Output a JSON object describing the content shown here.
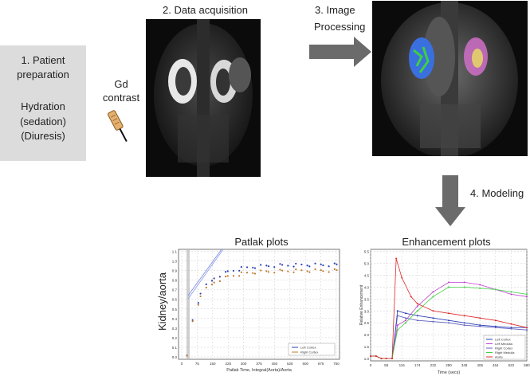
{
  "steps": {
    "prep_number": "1. Patient",
    "prep_title2": "preparation",
    "prep_hydration": "Hydration",
    "prep_sedation": "(sedation)",
    "prep_diuresis": "(Diuresis)",
    "contrast_line1": "Gd",
    "contrast_line2": "contrast",
    "acquisition": "2. Data acquisition",
    "processing_line1": "3. Image",
    "processing_line2": "Processing",
    "modeling": "4. Modeling"
  },
  "patlak": {
    "title": "Patlak plots",
    "ylabel": "Kidney/aorta",
    "xlabel": "Patlak Time, Integral(Aorta)/Aorta",
    "yticks": [
      "0.0",
      "0.1",
      "0.2",
      "0.3",
      "0.4",
      "0.5",
      "0.6",
      "0.7",
      "0.8",
      "0.9",
      "1.0",
      "1.1"
    ],
    "xticks": [
      "0",
      "75",
      "150",
      "225",
      "300",
      "375",
      "450",
      "525",
      "600",
      "675",
      "750"
    ],
    "legend": [
      "Left Cortex",
      "Right Cortex"
    ]
  },
  "enhancement": {
    "title": "Enhancement plots",
    "ylabel": "Relative Enhancement",
    "xlabel": "Time (secs)",
    "yticks": [
      "1.0",
      "1.5",
      "2.0",
      "2.5",
      "3.0",
      "3.5",
      "4.0",
      "4.5",
      "5.0",
      "5.5"
    ],
    "xticks": [
      "0",
      "58",
      "116",
      "174",
      "232",
      "290",
      "348",
      "406",
      "464",
      "522",
      "580"
    ],
    "legend": [
      "Left Cortex",
      "Left Medulla",
      "Right Cortex",
      "Right Medulla",
      "Aorta"
    ]
  },
  "colors": {
    "arrow": "#6b6b6b",
    "series_blue": "#2b3fb5",
    "series_orange": "#c07a30",
    "series_red": "#e02828",
    "series_magenta": "#c23fd0",
    "series_green": "#3fcf3f",
    "kidney_left": "#3a6fe0",
    "kidney_right": "#d070c8"
  }
}
